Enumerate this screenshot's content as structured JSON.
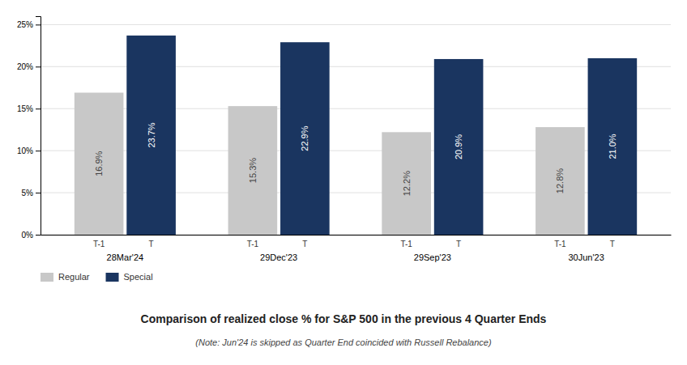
{
  "chart_data": {
    "type": "bar",
    "title": "Comparison of realized close % for S&P 500 in the previous 4 Quarter Ends",
    "subtitle": "(Note: Jun'24  is skipped as Quarter End coincided with Russell Rebalance)",
    "categories": [
      "28Mar'24",
      "29Dec'23",
      "29Sep'23",
      "30Jun'23"
    ],
    "series": [
      {
        "name": "Regular",
        "tick_label": "T-1",
        "color": "#c8c8c8",
        "values": [
          16.9,
          15.3,
          12.2,
          12.8
        ],
        "value_labels": [
          "16.9%",
          "15.3%",
          "12.2%",
          "12.8%"
        ]
      },
      {
        "name": "Special",
        "tick_label": "T",
        "color": "#1a3560",
        "values": [
          23.7,
          22.9,
          20.9,
          21.0
        ],
        "value_labels": [
          "23.7%",
          "22.9%",
          "20.9%",
          "21.0%"
        ]
      }
    ],
    "ylim": [
      0,
      26
    ],
    "yticks": [
      {
        "value": 0,
        "label": "0%"
      },
      {
        "value": 5,
        "label": "5%"
      },
      {
        "value": 10,
        "label": "10%"
      },
      {
        "value": 15,
        "label": "15%"
      },
      {
        "value": 20,
        "label": "20%"
      },
      {
        "value": 25,
        "label": "25%"
      }
    ],
    "grid": true,
    "legend": "bottom",
    "data_labels": true
  }
}
